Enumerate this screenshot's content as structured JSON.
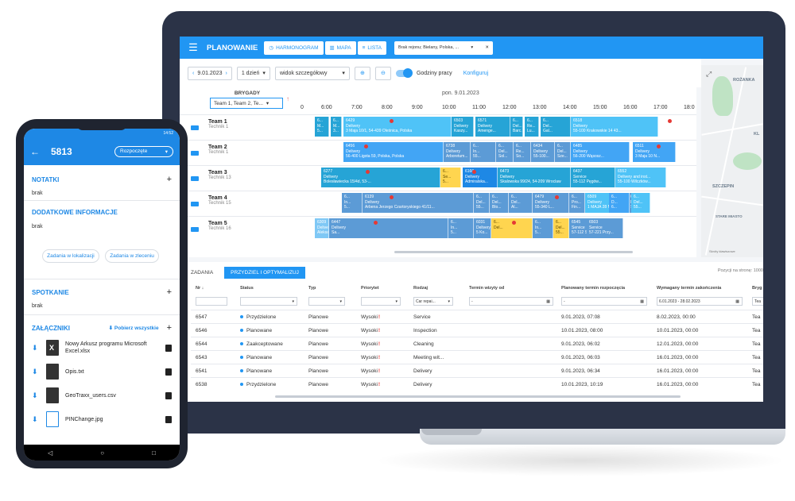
{
  "desktop": {
    "menu_icon": "menu-icon",
    "app_title": "PLANOWANIE",
    "view_tabs": [
      {
        "label": "HARMONOGRAM",
        "icon": "clock-icon"
      },
      {
        "label": "MAPA",
        "icon": "map-icon"
      },
      {
        "label": "LISTA",
        "icon": "list-icon"
      }
    ],
    "filter_chip": "Brak rejonu; Bielany, Polska, ...",
    "toolbar": {
      "date": "9.01.2023",
      "range": "1 dzień",
      "view_mode": "widok szczegółowy",
      "working_hours": "Godziny pracy",
      "configure": "Konfiguruj"
    },
    "schedule": {
      "brigades_header": "BRYGADY",
      "brigades_select": "Team 1, Team 2, Te...",
      "date_header": "pon. 9.01.2023",
      "hours": [
        "0",
        "6:00",
        "7:00",
        "8:00",
        "9:00",
        "10:00",
        "11:00",
        "12:00",
        "13:00",
        "14:00",
        "15:00",
        "16:00",
        "17:00",
        "18:0"
      ],
      "teams": [
        {
          "name": "Team 1",
          "tech": "Technik 1"
        },
        {
          "name": "Team 2",
          "tech": "Technik 1"
        },
        {
          "name": "Team 3",
          "tech": "Technik 13"
        },
        {
          "name": "Team 4",
          "tech": "Technik 15"
        },
        {
          "name": "Team 5",
          "tech": "Technik 16"
        }
      ],
      "bars": [
        {
          "text": "6...\nM...\n5...",
          "c": "c2"
        },
        {
          "text": "6...\nM...\n3...",
          "c": "c2"
        },
        {
          "text": "6429\nDelivery\n3 Maja 10/1, 54-439 Oleśnica, Polska",
          "c": "c1"
        },
        {
          "text": "6503\nDelivery\nKaszy...",
          "c": "c2"
        },
        {
          "text": "6571\nDelivery\nAmenge...",
          "c": "c2"
        },
        {
          "text": "6...\nDel...\nBarc...",
          "c": "c2"
        },
        {
          "text": "6...\nRe...\nLu...",
          "c": "c2"
        },
        {
          "text": "6...\nDel...\nGal...",
          "c": "c2"
        },
        {
          "text": "6518\nDelivery\n55-100 Krakowskie 14 43...",
          "c": "c1"
        },
        {
          "text": "6456\nDelivery\n56-400 Ligota 59, Polska, Polska",
          "c": "c3"
        },
        {
          "text": "6738\nDelivery\nArboretum...",
          "c": "c4"
        },
        {
          "text": "6...\nIn...\n55...",
          "c": "c4"
        },
        {
          "text": "6...\nDel...\nSol...",
          "c": "c4"
        },
        {
          "text": "6...\nRe...\nSo...",
          "c": "c4"
        },
        {
          "text": "6434\nDelivery\n55-100...",
          "c": "c4"
        },
        {
          "text": "6...\nDel...\nSze...",
          "c": "c4"
        },
        {
          "text": "6485\nDelivery\n56-200 Wąsosz...",
          "c": "c3"
        },
        {
          "text": "6511\nDelivery\n3 Maja 10 N...",
          "c": "c3"
        },
        {
          "text": "6277\nDelivery\nBolesławiecka 15/4d, 53-...",
          "c": "c2"
        },
        {
          "text": "6...\nSe...\n5...",
          "c": "c5"
        },
        {
          "text": "6160\nDelivery\nAdmiralska...",
          "c": "c6"
        },
        {
          "text": "6473\nDelivery\nSkalowska 99/24, 54-209 Wroclaw",
          "c": "c2"
        },
        {
          "text": "6437\nService\n55-112 Pęgów...",
          "c": "c2"
        },
        {
          "text": "6552\nDelivery and inst...\n55-100 Wilczków...",
          "c": "c1"
        },
        {
          "text": "6...\nIn...\n5...",
          "c": "c4"
        },
        {
          "text": "6139\nDelivery\nArbena Jerzego Czartoryskiego 41/11...",
          "c": "c4"
        },
        {
          "text": "6...\nDel...\n55...",
          "c": "c4"
        },
        {
          "text": "6...\nDel...\nBlo...",
          "c": "c4"
        },
        {
          "text": "6...\nDel...\nAl...",
          "c": "c4"
        },
        {
          "text": "6479\nDelivery\n55-340 L...",
          "c": "c4"
        },
        {
          "text": "6...\nPro...\nFin...",
          "c": "c4"
        },
        {
          "text": "6509\nDelivery\n1 MAJA 28 M...",
          "c": "c1"
        },
        {
          "text": "6...\nD...\nS...",
          "c": "c4"
        },
        {
          "text": "6...\nDel...\n55...",
          "c": "c1"
        },
        {
          "text": "6...\nD...\n6...",
          "c": "c3"
        },
        {
          "text": "6309\nDelivery\nAleksandra Gollawskiego 7/1a, 54-209 Wrocł...",
          "c": "c7"
        },
        {
          "text": "6447\nDelivery\nSa...",
          "c": "c4"
        },
        {
          "text": "6...\nIn...\n5...",
          "c": "c4"
        },
        {
          "text": "6031\nDelivery\n5 Ko...",
          "c": "c4"
        },
        {
          "text": "6...\nDel...",
          "c": "c5"
        },
        {
          "text": "6...\nIn...\n5...",
          "c": "c4"
        },
        {
          "text": "6...\nDel...\n55...",
          "c": "c5"
        },
        {
          "text": "6545\nService\n57-112 Strzelin...",
          "c": "c4"
        },
        {
          "text": "6503\nService\n57-221 Przy...",
          "c": "c4"
        }
      ]
    },
    "map": {
      "labels": [
        "ROŻANKA",
        "KL",
        "SZCZEPIN",
        "STARE MIASTO"
      ],
      "footer": "Skróty klawiszowe"
    },
    "bottom": {
      "tab_tasks": "ZADANIA",
      "tab_assign": "PRZYDZIEL I OPTYMALIZUJ",
      "per_page": "Pozycji na stronę: 1000",
      "columns": [
        "Nr",
        "Status",
        "Typ",
        "Priorytet",
        "Rodzaj",
        "Termin wizyty od",
        "Planowany termin rozpoczęcia",
        "Wymagany termin zakończenia",
        "Bryg"
      ],
      "filters": {
        "kind": "Car repai...",
        "start": "-",
        "planned": "-",
        "required": "6.01.2023 - 28.02.2023",
        "brig": "Tea"
      },
      "rows": [
        {
          "nr": "6547",
          "status": "Przydzielone",
          "typ": "Planowe",
          "prio": "Wysoki",
          "kind": "Service",
          "planned": "9.01.2023, 07:08",
          "required": "8.02.2023, 00:00",
          "brig": "Tea"
        },
        {
          "nr": "6546",
          "status": "Planowane",
          "typ": "Planowe",
          "prio": "Wysoki",
          "kind": "Inspection",
          "planned": "10.01.2023, 08:00",
          "required": "10.01.2023, 00:00",
          "brig": "Tea"
        },
        {
          "nr": "6544",
          "status": "Zaakceptowane",
          "typ": "Planowe",
          "prio": "Wysoki",
          "kind": "Cleaning",
          "planned": "9.01.2023, 06:02",
          "required": "12.01.2023, 00:00",
          "brig": "Tea"
        },
        {
          "nr": "6543",
          "status": "Planowane",
          "typ": "Planowe",
          "prio": "Wysoki",
          "kind": "Meeting wit...",
          "planned": "9.01.2023, 06:03",
          "required": "16.01.2023, 00:00",
          "brig": "Tea"
        },
        {
          "nr": "6541",
          "status": "Planowane",
          "typ": "Planowe",
          "prio": "Wysoki",
          "kind": "Delivery",
          "planned": "9.01.2023, 06:34",
          "required": "16.01.2023, 00:00",
          "brig": "Tea"
        },
        {
          "nr": "6538",
          "status": "Przydzielone",
          "typ": "Planowe",
          "prio": "Wysoki",
          "kind": "Delivery",
          "planned": "10.01.2023, 10:19",
          "required": "16.01.2023, 00:00",
          "brig": "Tea"
        }
      ]
    }
  },
  "phone": {
    "time": "14:52",
    "number": "5813",
    "status": "Rozpoczęte",
    "notes_title": "NOTATKI",
    "notes_value": "brak",
    "extra_title": "DODATKOWE INFORMACJE",
    "extra_value": "brak",
    "btn_location": "Zadania w lokalizacji",
    "btn_order": "Zadania w zleceniu",
    "meeting_title": "SPOTKANIE",
    "meeting_value": "brak",
    "attachments_title": "ZAŁĄCZNIKI",
    "download_all": "Pobierz wszystkie",
    "files": [
      "Nowy Arkusz programu Microsoft Excel.xlsx",
      "Opis.txt",
      "GeoTraxx_users.csv",
      "PINChange.jpg"
    ]
  }
}
